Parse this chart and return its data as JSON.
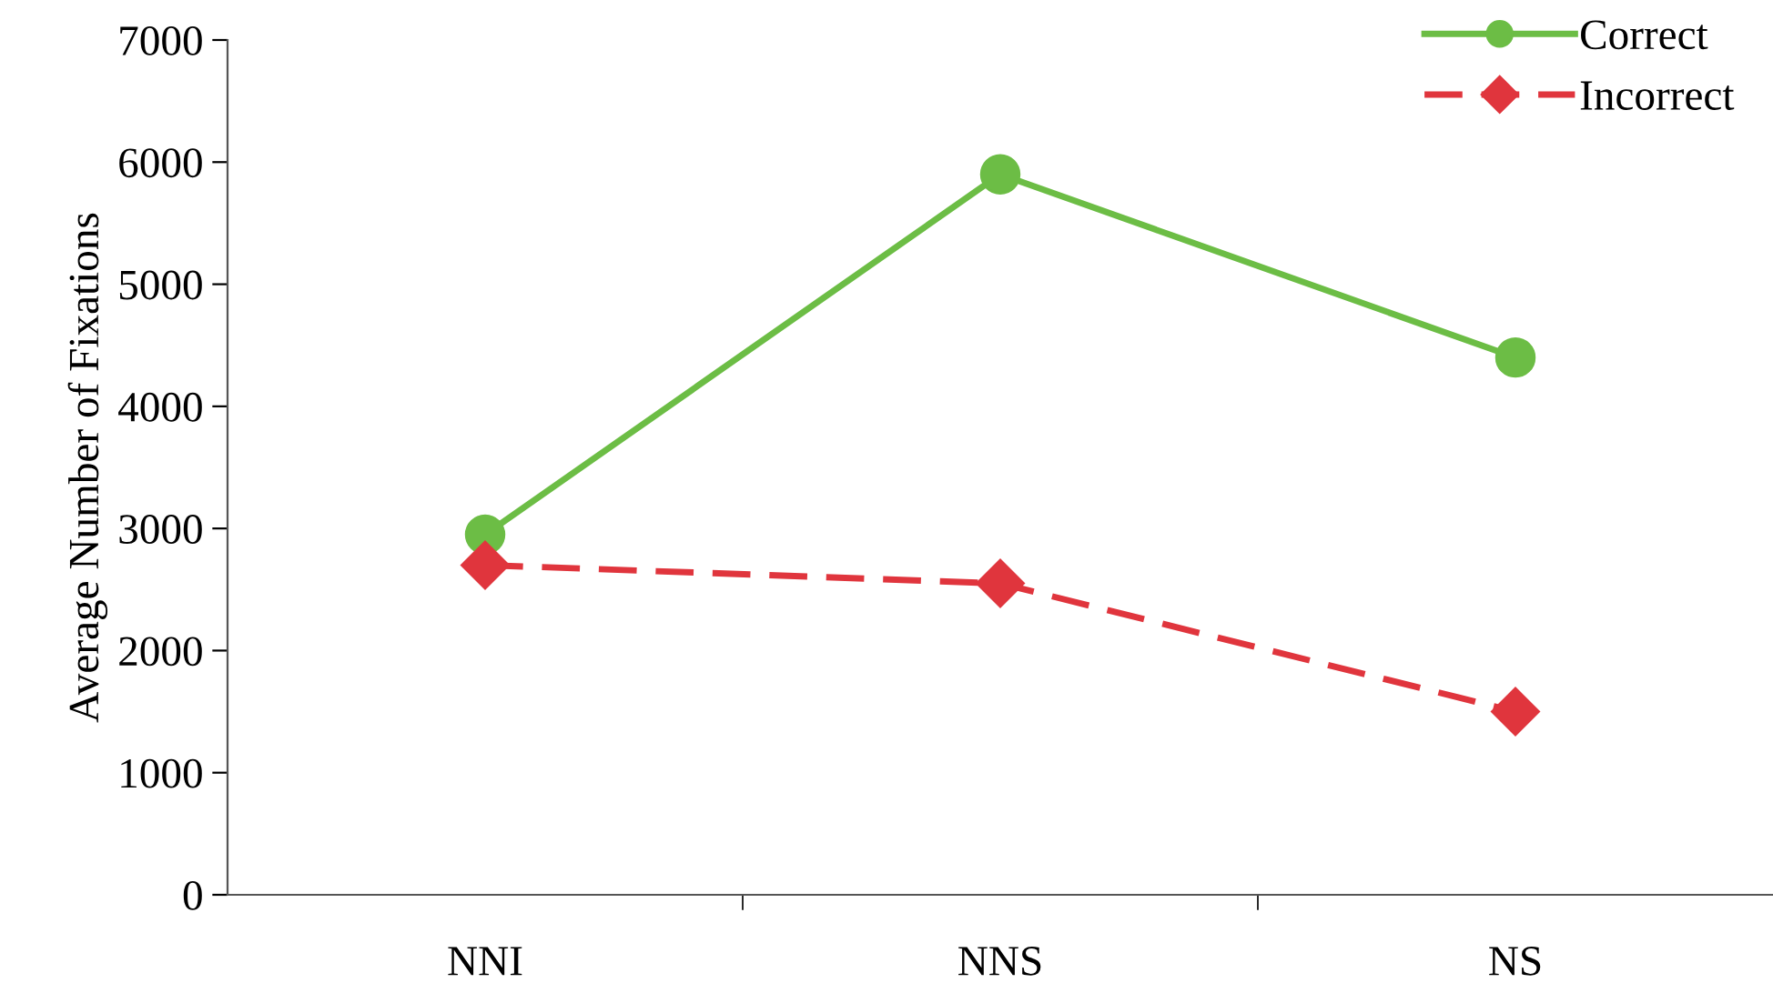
{
  "chart_data": {
    "type": "line",
    "ylabel": "Average Number of Fixations",
    "categories": [
      "NNI",
      "NNS",
      "NS"
    ],
    "series": [
      {
        "name": "Correct",
        "color": "#6cbd45",
        "values": [
          2950,
          5900,
          4400
        ],
        "marker": "circle",
        "line_style": "solid"
      },
      {
        "name": "Incorrect",
        "color": "#e0353d",
        "values": [
          2700,
          2550,
          1500
        ],
        "marker": "diamond",
        "line_style": "dashed"
      }
    ],
    "ylim": [
      0,
      7000
    ],
    "yticks": [
      0,
      1000,
      2000,
      3000,
      4000,
      5000,
      6000,
      7000
    ],
    "grid": false,
    "legend": "top right"
  }
}
